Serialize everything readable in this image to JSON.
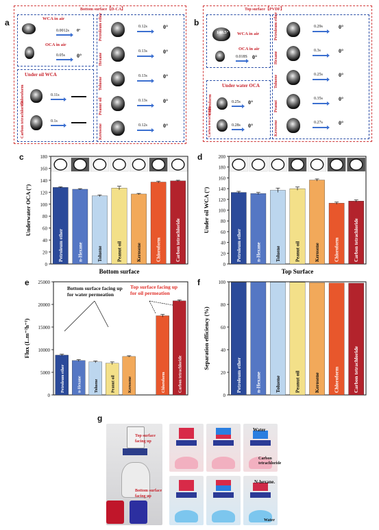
{
  "panel_a": {
    "letter": "a",
    "title": "Bottom surface【D-CA】",
    "wca_air": "WCA in air",
    "oca_air": "OCA in air",
    "t_wca_air": "0.0012s",
    "t_oca_air": "0.05s",
    "deg": "0°",
    "under_oil": "Under oil WCA",
    "oils": [
      {
        "name": "Petroleum ether",
        "time": "0.12s"
      },
      {
        "name": "Hexane",
        "time": "0.13s"
      },
      {
        "name": "Toluene",
        "time": "0.13s"
      },
      {
        "name": "Peanut oil",
        "time": "0.13s"
      },
      {
        "name": "Kerosene",
        "time": "0.12s"
      }
    ],
    "heavy": [
      {
        "name": "Chloroform",
        "time": "0.11s"
      },
      {
        "name": "Carbon tetrachloride",
        "time": "0.1s"
      }
    ]
  },
  "panel_b": {
    "letter": "b",
    "title": "Top surface【PVDF】",
    "wca_air": "WCA in air",
    "wca_value": "140.5°",
    "oca_air": "OCA in air",
    "t_oca_air": "0.018S",
    "deg": "0°",
    "under_water": "Under water OCA",
    "oils": [
      {
        "name": "Petroleum ether",
        "time": "0.29s"
      },
      {
        "name": "Hexane",
        "time": "0.3s"
      },
      {
        "name": "Toluene",
        "time": "0.25s"
      },
      {
        "name": "Peanut",
        "time": "0.35s"
      },
      {
        "name": "Kerosene",
        "time": "0.27s"
      }
    ],
    "heavy": [
      {
        "name": "Chloroform",
        "time": "0.25s"
      },
      {
        "name": "Carbon tetrachloride",
        "time": "0.28s"
      }
    ]
  },
  "panel_c": {
    "letter": "c"
  },
  "panel_d": {
    "letter": "d"
  },
  "panel_e": {
    "letter": "e",
    "ann_bottom": "Bottom surface facing up\nfor water permeation",
    "ann_top": "Top surface facing  up\nfor oil permeation"
  },
  "panel_f": {
    "letter": "f"
  },
  "panel_g": {
    "letter": "g",
    "top_label": "Top surface\nfacing up",
    "bottom_label": "Bottom surface\nfacing up",
    "water_top": "Water",
    "ccl4": "Carbon\ntetrachloride",
    "hexane": "N-hexane.",
    "water_bottom": "Water"
  },
  "colors": {
    "bars7": [
      "#2b4a9a",
      "#5577c4",
      "#bcd6ee",
      "#f3e089",
      "#f2a95a",
      "#e8572c",
      "#b3232c"
    ],
    "frame_red": "#d23a3a",
    "frame_blue": "#2a4fa8"
  },
  "chart_data": [
    {
      "type": "bar",
      "panel": "c",
      "categories": [
        "Petroleum ether",
        "n-Hexane",
        "Toluene",
        "Peanut oil",
        "Kerosene",
        "Chloroform",
        "Carbon tetrachloride"
      ],
      "values": [
        128,
        125,
        114,
        127,
        117,
        137,
        139
      ],
      "errors": [
        1,
        1,
        1.5,
        3,
        1,
        1.5,
        1
      ],
      "xlabel": "Bottom surface",
      "ylabel": "Underwater OCA (°)",
      "ylim": [
        0,
        180
      ],
      "yticks": [
        0,
        20,
        40,
        60,
        80,
        100,
        120,
        140,
        160,
        180
      ]
    },
    {
      "type": "bar",
      "panel": "d",
      "categories": [
        "Petroleum ether",
        "n-Hexane",
        "Toluene",
        "Peanut oil",
        "Kerosene",
        "Chloroform",
        "Carbon tetrachloride"
      ],
      "values": [
        133,
        131,
        137,
        140,
        156,
        113,
        117
      ],
      "errors": [
        2,
        2,
        4,
        3,
        2,
        2,
        2
      ],
      "xlabel": "Top Surface",
      "ylabel": "Under oil WCA (°)",
      "ylim": [
        0,
        200
      ],
      "yticks": [
        0,
        20,
        40,
        60,
        80,
        100,
        120,
        140,
        160,
        180,
        200
      ]
    },
    {
      "type": "bar",
      "panel": "e",
      "categories": [
        "Petroleum ether",
        "n-Hexane",
        "Toluene",
        "Peanut oil",
        "Kerosene",
        "",
        "Chloroform",
        "Carbon tetrachloride"
      ],
      "values": [
        8800,
        7600,
        7300,
        7000,
        8500,
        null,
        17500,
        20800
      ],
      "errors": [
        200,
        200,
        200,
        300,
        150,
        null,
        300,
        200
      ],
      "ylabel": "Flux (L.m⁻²h⁻¹)",
      "ylim": [
        0,
        25000
      ],
      "yticks": [
        0,
        5000,
        10000,
        15000,
        20000,
        25000
      ]
    },
    {
      "type": "bar",
      "panel": "f",
      "categories": [
        "Petroleum ether",
        "n-Hexane",
        "Toluene",
        "Peanut oil",
        "Kerosene",
        "Chloroform",
        "Carbon tetrachloride"
      ],
      "values": [
        99.5,
        99.8,
        99.7,
        99.6,
        99.2,
        99.0,
        98.8
      ],
      "ylabel": "Separation efficiency (%)",
      "ylim": [
        0,
        100
      ],
      "yticks": [
        0,
        20,
        40,
        60,
        80,
        100
      ]
    }
  ]
}
